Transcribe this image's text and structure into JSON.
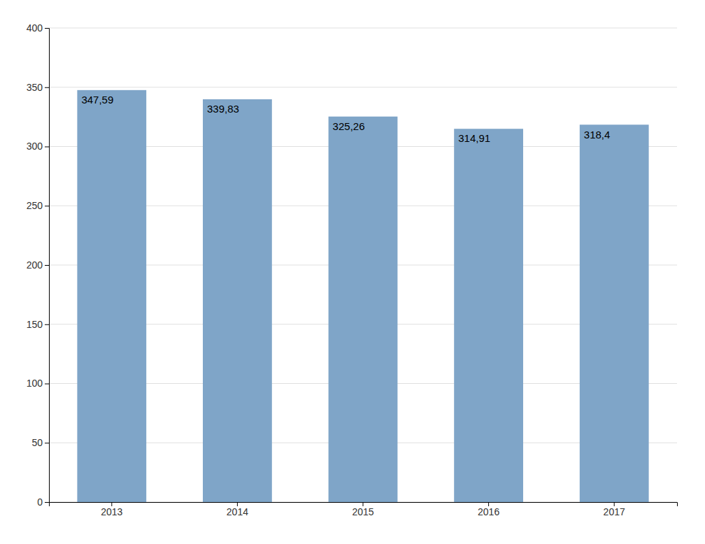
{
  "chart_data": {
    "type": "bar",
    "categories": [
      "2013",
      "2014",
      "2015",
      "2016",
      "2017"
    ],
    "values": [
      347.59,
      339.83,
      325.26,
      314.91,
      318.4
    ],
    "value_labels": [
      "347,59",
      "339,83",
      "325,26",
      "314,91",
      "318,4"
    ],
    "data_labels": true,
    "color": "#7fa5c8",
    "ylim": [
      0,
      400
    ],
    "yticks": [
      0,
      50,
      100,
      150,
      200,
      250,
      300,
      350,
      400
    ],
    "grid": true
  }
}
